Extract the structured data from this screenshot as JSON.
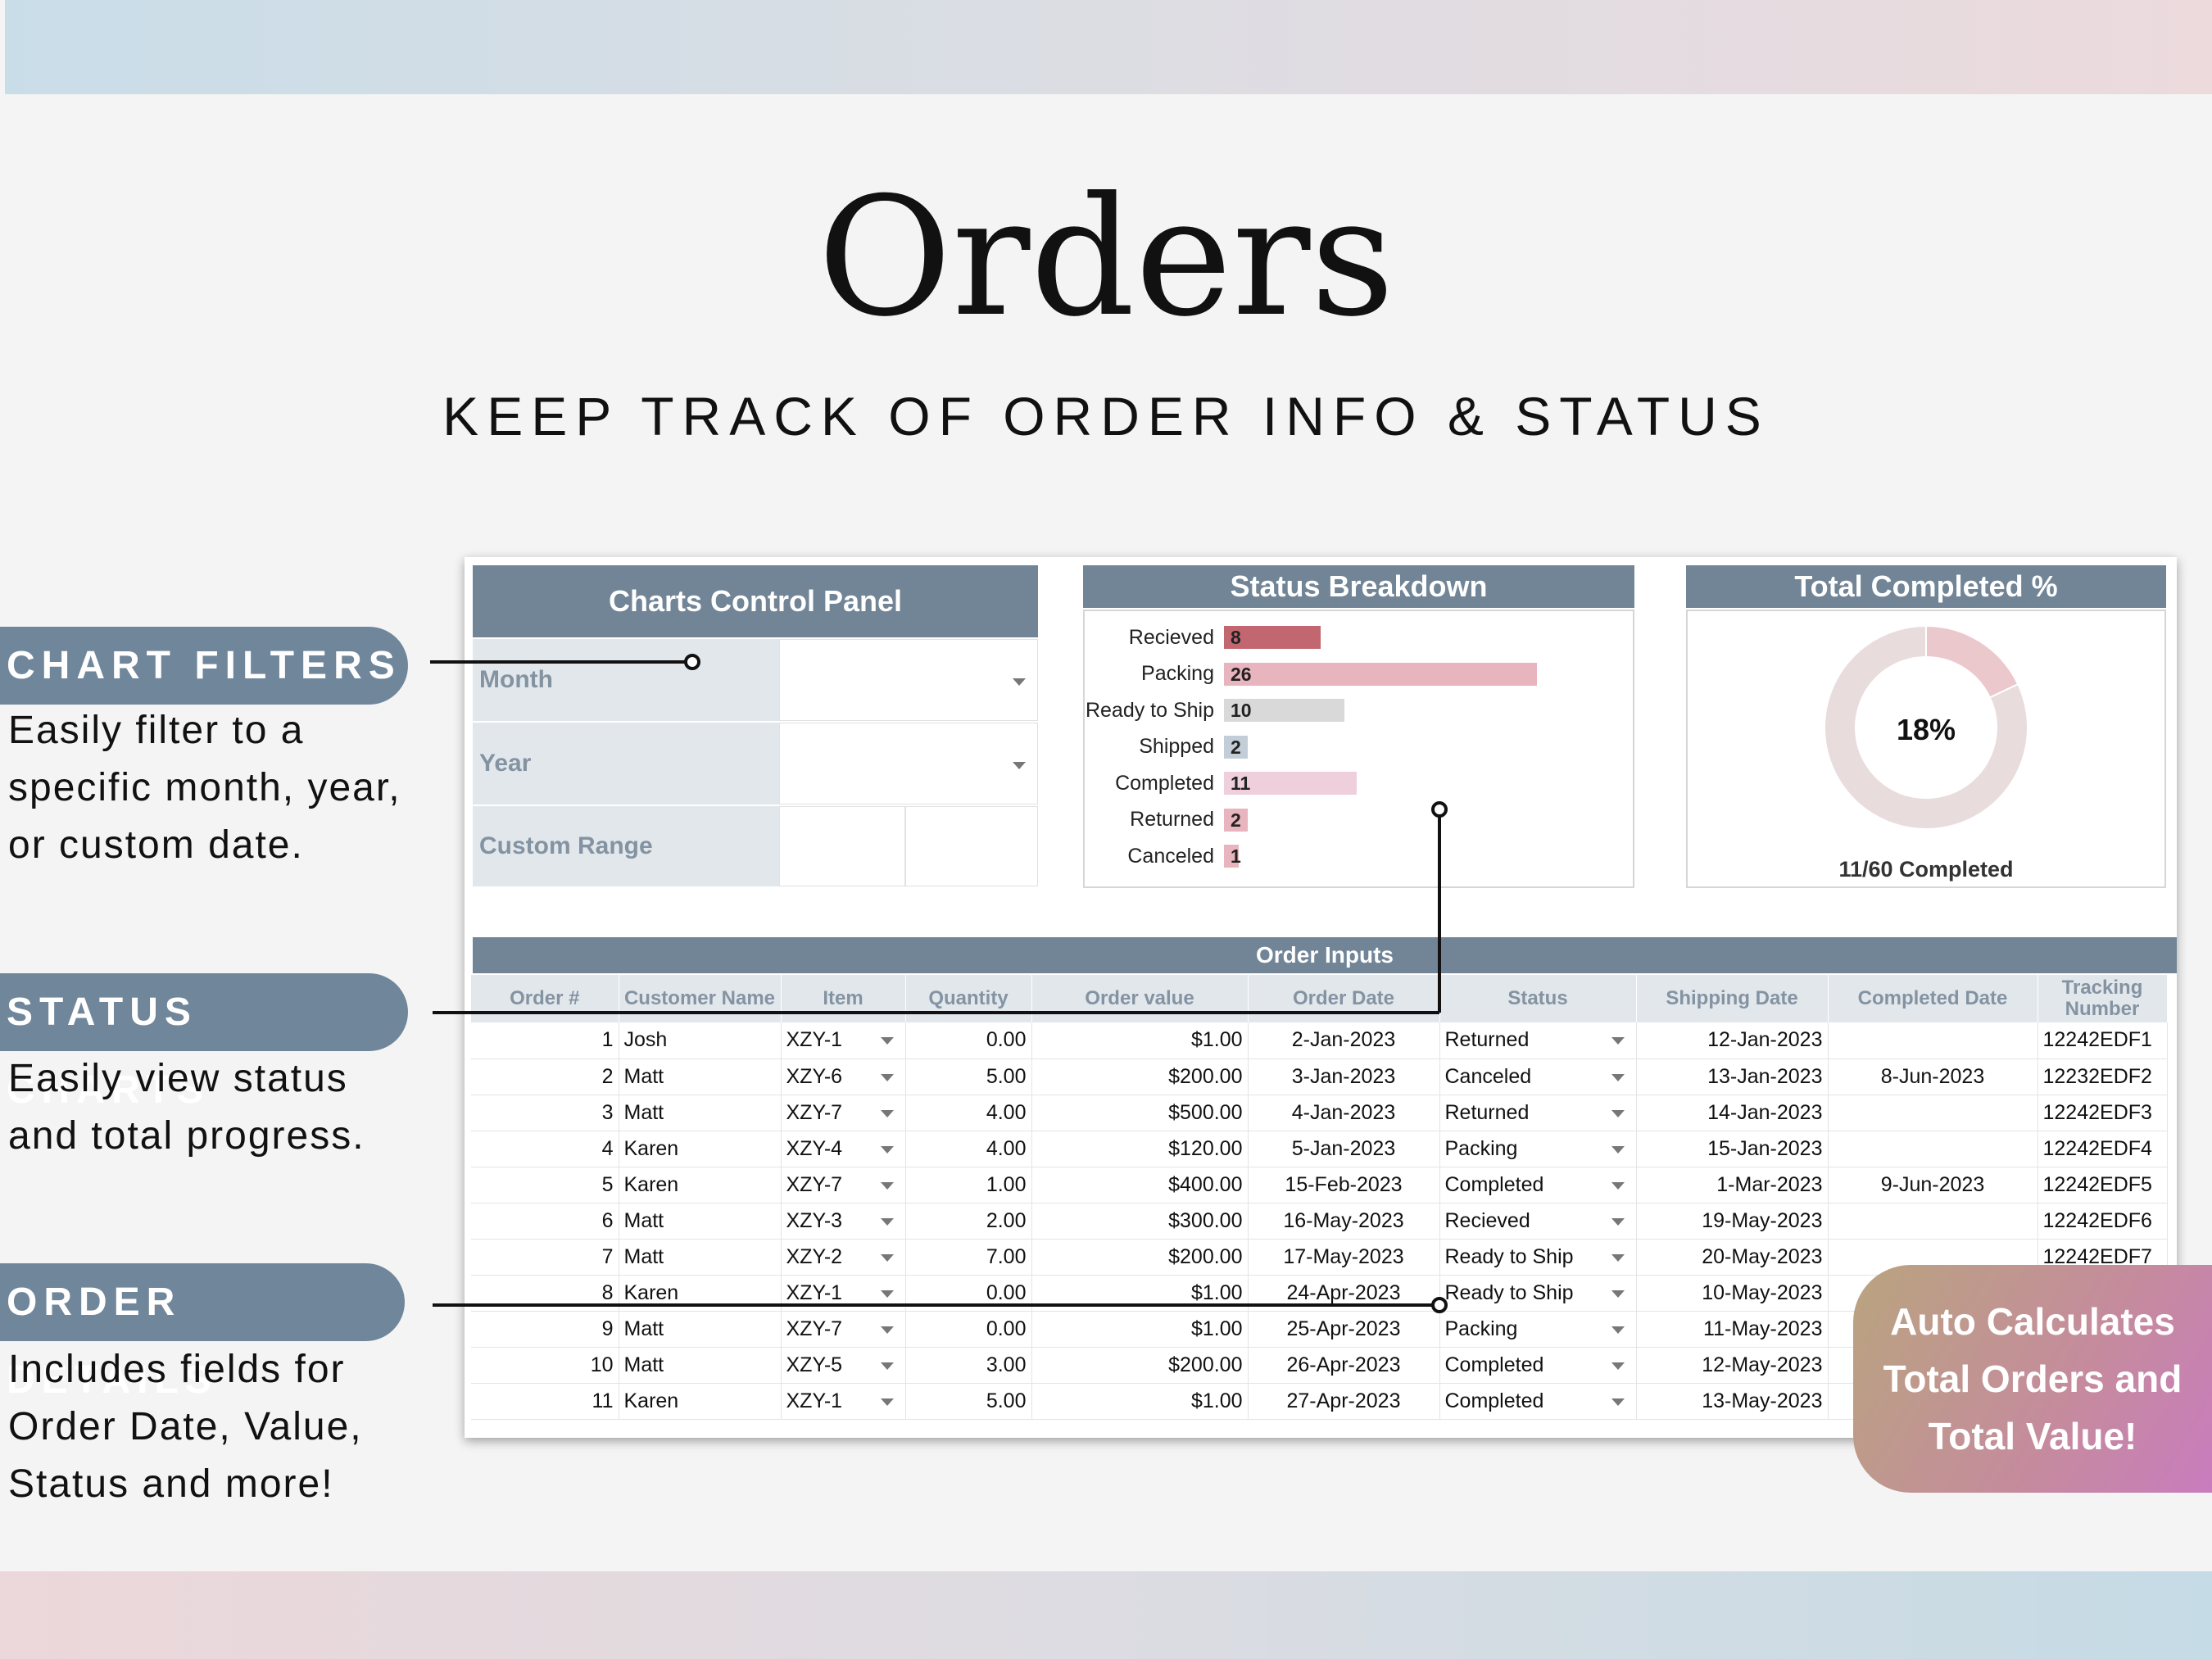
{
  "header": {
    "title": "Orders",
    "subtitle": "KEEP TRACK OF ORDER INFO & STATUS"
  },
  "callouts": [
    {
      "label": "CHART FILTERS",
      "desc": "Easily filter to a specific month, year, or custom date."
    },
    {
      "label": "STATUS CHARTS",
      "desc": "Easily view status and total progress."
    },
    {
      "label": "ORDER DETAILS",
      "desc": "Includes fields for Order Date, Value, Status and more!"
    }
  ],
  "control_panel": {
    "title": "Charts Control Panel",
    "month_label": "Month",
    "year_label": "Year",
    "custom_range_label": "Custom Range"
  },
  "status_breakdown": {
    "title": "Status Breakdown"
  },
  "chart_data": [
    {
      "type": "bar",
      "title": "Status Breakdown",
      "categories": [
        "Recieved",
        "Packing",
        "Ready to Ship",
        "Shipped",
        "Completed",
        "Returned",
        "Canceled"
      ],
      "values": [
        8,
        26,
        10,
        2,
        11,
        2,
        1
      ],
      "colors": [
        "#c2676f",
        "#e8b4bd",
        "#d9d9d9",
        "#c3cdd8",
        "#efcfdc",
        "#e8b4bd",
        "#e8b4bd"
      ],
      "orientation": "horizontal",
      "data_labels": true
    },
    {
      "type": "pie",
      "title": "Total Completed %",
      "donut": true,
      "values": [
        18,
        82
      ],
      "colors": [
        "#ebc8cc",
        "#e8dcdd"
      ],
      "center_label": "18%",
      "footer_label": "11/60 Completed"
    }
  ],
  "order_inputs": {
    "title": "Order Inputs",
    "columns": [
      "Order #",
      "Customer Name",
      "Item",
      "Quantity",
      "Order value",
      "Order Date",
      "Status",
      "Shipping Date",
      "Completed Date",
      "Tracking Number"
    ],
    "rows": [
      [
        "1",
        "Josh",
        "XZY-1",
        "0.00",
        "$1.00",
        "2-Jan-2023",
        "Returned",
        "12-Jan-2023",
        "",
        "12242EDF1"
      ],
      [
        "2",
        "Matt",
        "XZY-6",
        "5.00",
        "$200.00",
        "3-Jan-2023",
        "Canceled",
        "13-Jan-2023",
        "8-Jun-2023",
        "12232EDF2"
      ],
      [
        "3",
        "Matt",
        "XZY-7",
        "4.00",
        "$500.00",
        "4-Jan-2023",
        "Returned",
        "14-Jan-2023",
        "",
        "12242EDF3"
      ],
      [
        "4",
        "Karen",
        "XZY-4",
        "4.00",
        "$120.00",
        "5-Jan-2023",
        "Packing",
        "15-Jan-2023",
        "",
        "12242EDF4"
      ],
      [
        "5",
        "Karen",
        "XZY-7",
        "1.00",
        "$400.00",
        "15-Feb-2023",
        "Completed",
        "1-Mar-2023",
        "9-Jun-2023",
        "12242EDF5"
      ],
      [
        "6",
        "Matt",
        "XZY-3",
        "2.00",
        "$300.00",
        "16-May-2023",
        "Recieved",
        "19-May-2023",
        "",
        "12242EDF6"
      ],
      [
        "7",
        "Matt",
        "XZY-2",
        "7.00",
        "$200.00",
        "17-May-2023",
        "Ready to Ship",
        "20-May-2023",
        "",
        "12242EDF7"
      ],
      [
        "8",
        "Karen",
        "XZY-1",
        "0.00",
        "$1.00",
        "24-Apr-2023",
        "Ready to Ship",
        "10-May-2023",
        "",
        ""
      ],
      [
        "9",
        "Matt",
        "XZY-7",
        "0.00",
        "$1.00",
        "25-Apr-2023",
        "Packing",
        "11-May-2023",
        "",
        ""
      ],
      [
        "10",
        "Matt",
        "XZY-5",
        "3.00",
        "$200.00",
        "26-Apr-2023",
        "Completed",
        "12-May-2023",
        "",
        ""
      ],
      [
        "11",
        "Karen",
        "XZY-1",
        "5.00",
        "$1.00",
        "27-Apr-2023",
        "Completed",
        "13-May-2023",
        "",
        ""
      ]
    ]
  },
  "badge": {
    "text": "Auto Calculates Total Orders and Total Value!"
  }
}
